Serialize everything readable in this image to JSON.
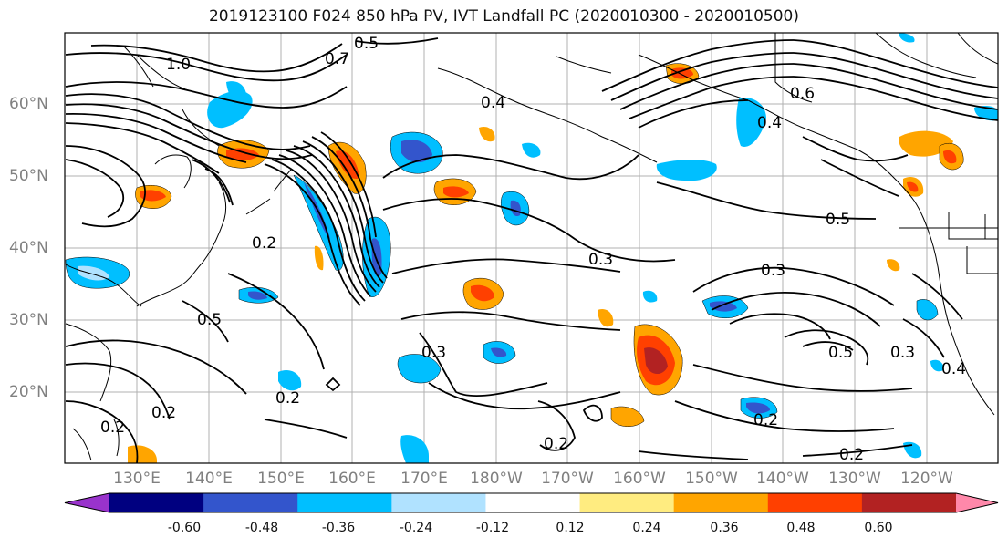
{
  "title": "2019123100 F024 850 hPa PV, IVT Landfall PC (2020010300 - 2020010500)",
  "lat_labels": [
    "60°N",
    "50°N",
    "40°N",
    "30°N",
    "20°N"
  ],
  "lon_labels": [
    "130°E",
    "140°E",
    "150°E",
    "160°E",
    "170°E",
    "180°W",
    "170°W",
    "160°W",
    "150°W",
    "140°W",
    "130°W",
    "120°W"
  ],
  "colorbar": {
    "colors": [
      "#9933cc",
      "#000080",
      "#3355cc",
      "#00bfff",
      "#b0e2ff",
      "#ffffff",
      "#ffec80",
      "#ffa500",
      "#ff4000",
      "#b22222",
      "#ff88aa"
    ],
    "tick_labels": [
      "-0.60",
      "-0.48",
      "-0.36",
      "-0.24",
      "-0.12",
      "0.12",
      "0.24",
      "0.36",
      "0.48",
      "0.60"
    ]
  },
  "contour_labels": [
    "0.5",
    "0.7",
    "1.0",
    "0.4",
    "0.2",
    "0.6",
    "0.4",
    "0.2",
    "0.5",
    "0.3",
    "0.3",
    "0.5",
    "0.3",
    "0.2",
    "0.2",
    "0.2",
    "0.2",
    "0.2",
    "0.3",
    "0.4",
    "0.5"
  ]
}
